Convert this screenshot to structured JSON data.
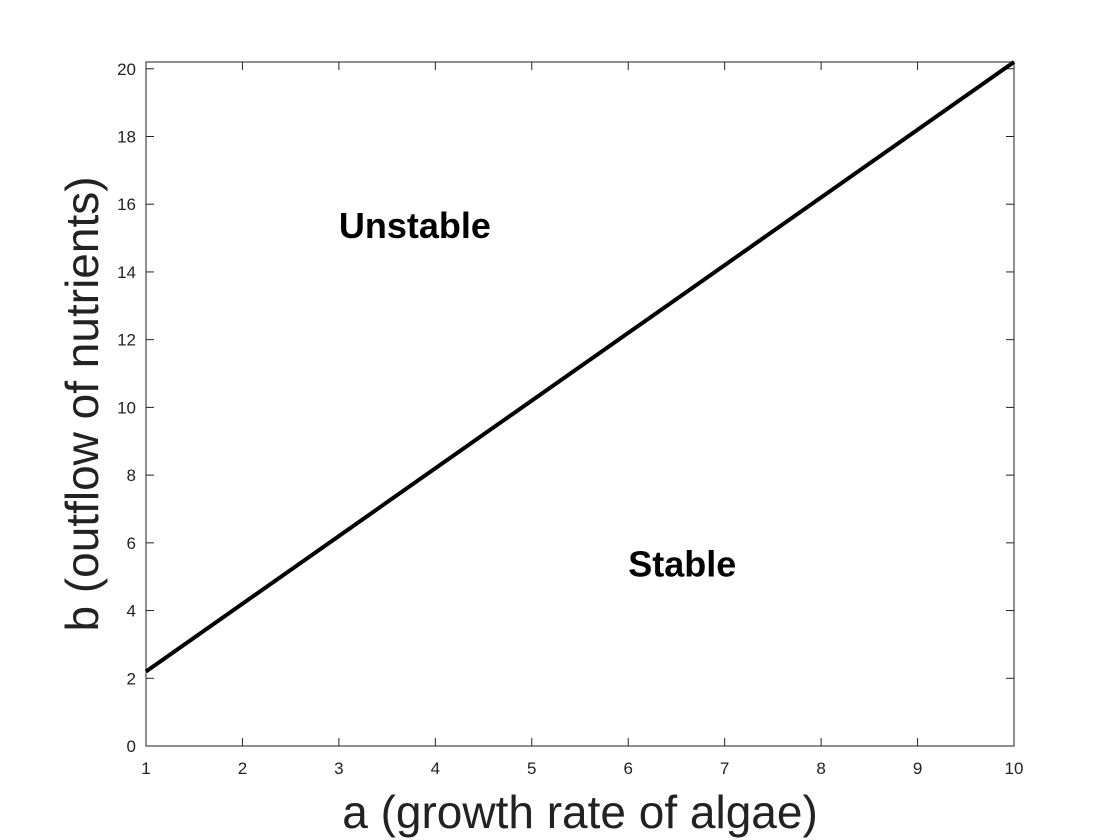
{
  "chart_data": {
    "type": "line",
    "xlabel": "a (growth rate of algae)",
    "ylabel": "b (outflow of nutrients)",
    "xlim": [
      1,
      10
    ],
    "ylim": [
      0,
      20.2
    ],
    "xticks": [
      1,
      2,
      3,
      4,
      5,
      6,
      7,
      8,
      9,
      10
    ],
    "yticks": [
      0,
      2,
      4,
      6,
      8,
      10,
      12,
      14,
      16,
      18,
      20
    ],
    "grid": false,
    "series": [
      {
        "x": [
          1,
          10
        ],
        "y": [
          2.2,
          20.2
        ],
        "color": "#000000"
      }
    ],
    "annotations": [
      {
        "text": "Unstable",
        "x": 3.0,
        "y": 15.0
      },
      {
        "text": "Stable",
        "x": 6.0,
        "y": 5.0
      }
    ]
  }
}
